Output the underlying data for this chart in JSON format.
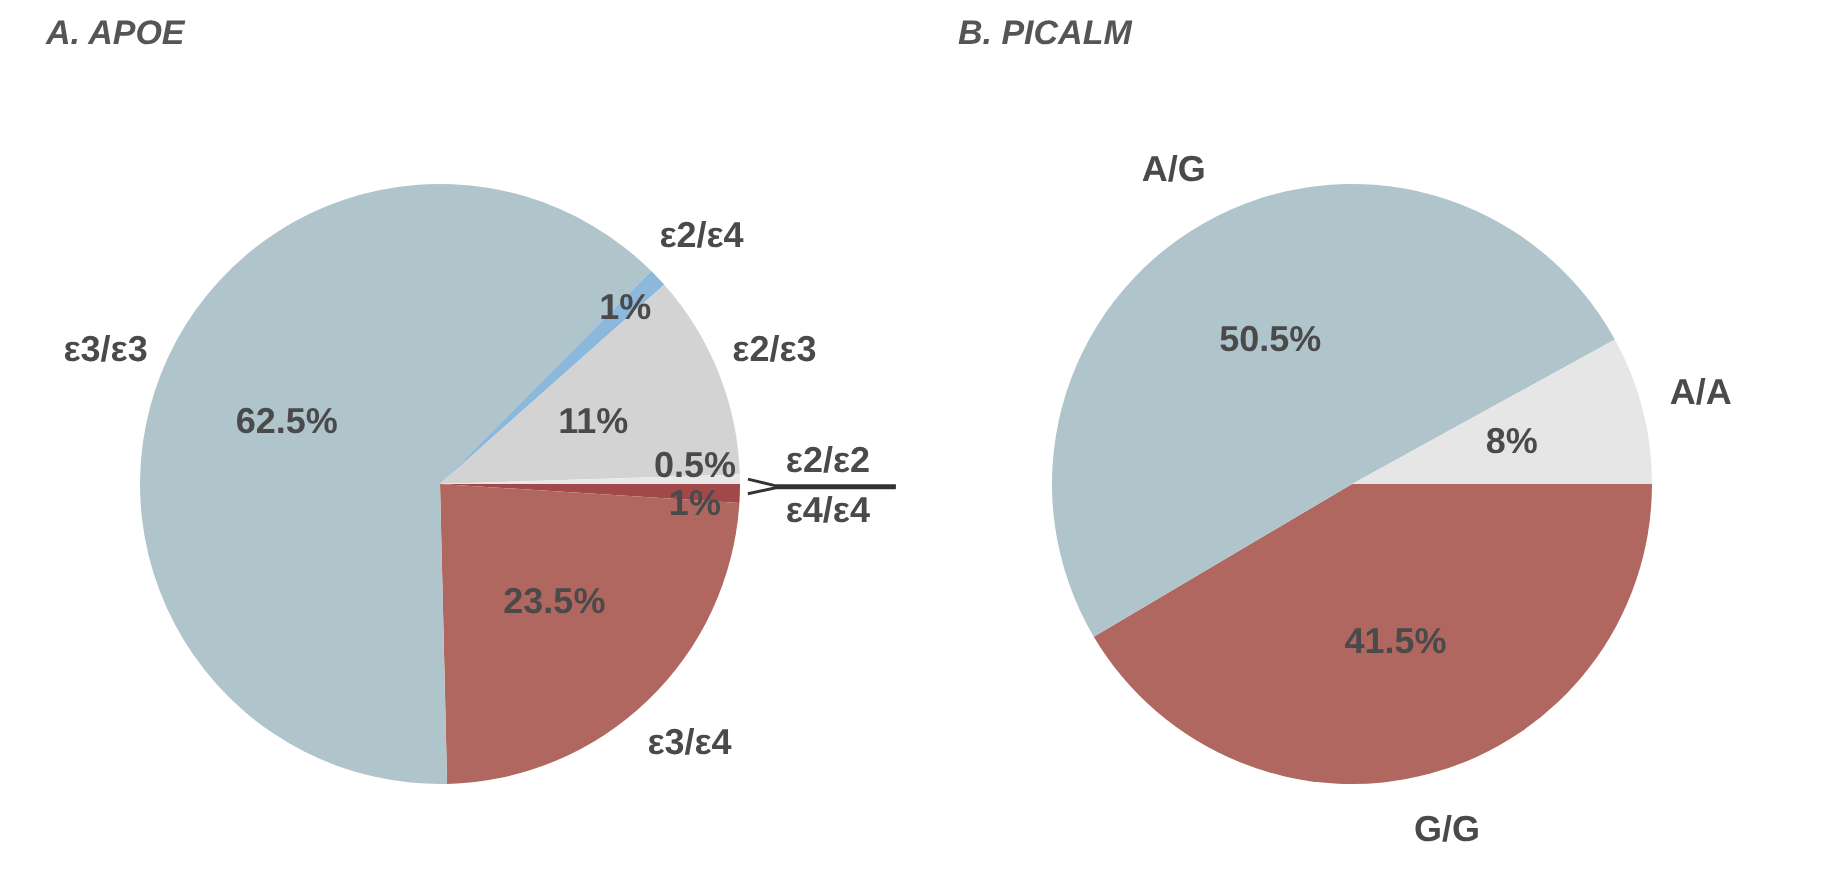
{
  "chart_data": [
    {
      "type": "pie",
      "title": "A. APOE",
      "categories": [
        "ε4/ε4",
        "ε3/ε4",
        "ε3/ε3",
        "ε2/ε4",
        "ε2/ε3",
        "ε2/ε2"
      ],
      "values": [
        1,
        23.5,
        62.5,
        1,
        11,
        0.5
      ],
      "value_labels": [
        "1%",
        "23.5%",
        "62.5%",
        "1%",
        "11%",
        "0.5%"
      ],
      "colors": [
        "#a0484a",
        "#b0675f",
        "#b0c4cc",
        "#8cb8dc",
        "#d3d3d3",
        "#e8e8e8"
      ]
    },
    {
      "type": "pie",
      "title": "B. PICALM",
      "categories": [
        "G/G",
        "A/G",
        "A/A"
      ],
      "values": [
        41.5,
        50.5,
        8
      ],
      "value_labels": [
        "41.5%",
        "50.5%",
        "8%"
      ],
      "colors": [
        "#b0675f",
        "#b0c4cc",
        "#e6e6e6"
      ]
    }
  ]
}
